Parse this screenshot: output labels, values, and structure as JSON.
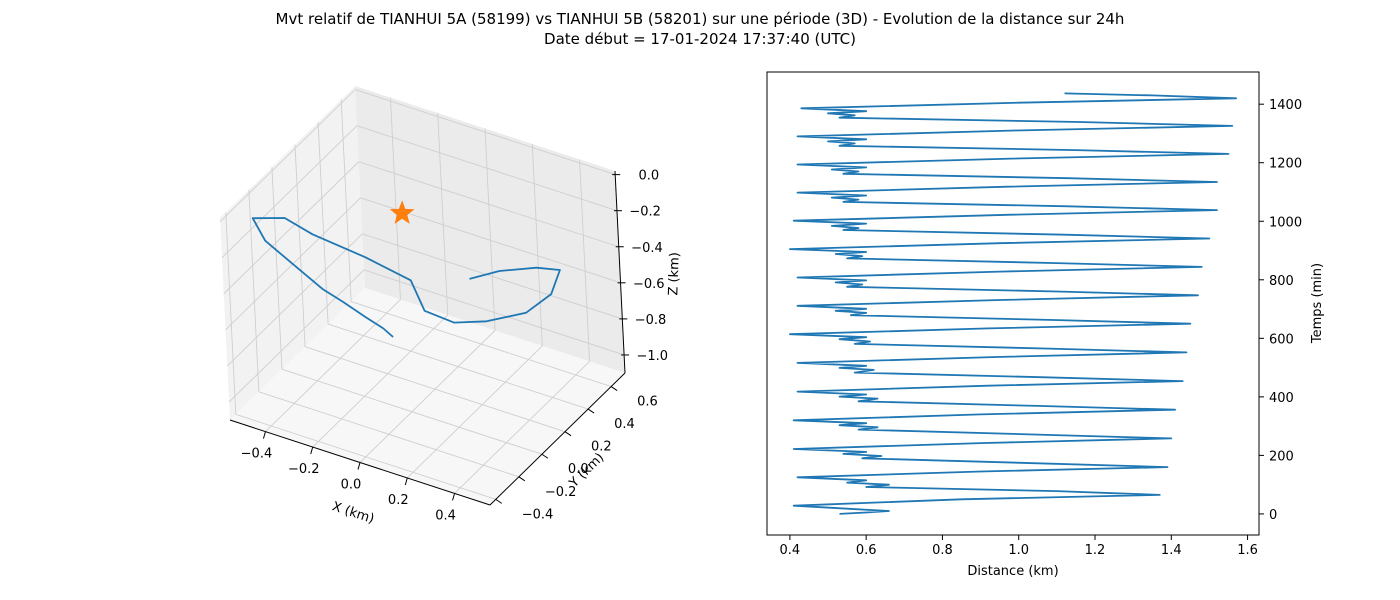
{
  "title_line1": "Mvt relatif de TIANHUI 5A (58199) vs TIANHUI 5B (58201) sur une période (3D) - Evolution de la distance sur 24h",
  "title_line2": "Date début = 17-01-2024 17:37:40 (UTC)",
  "colors": {
    "line": "#1f77b4",
    "star": "#ff7f0e",
    "pane_left": "#f2f2f2",
    "pane_right": "#ebebeb",
    "pane_floor": "#f7f7f7",
    "grid": "#d8d8d8"
  },
  "chart_data": [
    {
      "type": "line3d",
      "xlabel": "X (km)",
      "ylabel": "Y (km)",
      "zlabel": "Z (km)",
      "xlim": [
        -0.55,
        0.55
      ],
      "ylim": [
        -0.45,
        0.72
      ],
      "zlim": [
        -1.1,
        0.02
      ],
      "x_ticks": [
        -0.4,
        -0.2,
        0.0,
        0.2,
        0.4
      ],
      "y_ticks": [
        -0.4,
        -0.2,
        0.0,
        0.2,
        0.4,
        0.6
      ],
      "z_ticks": [
        0.0,
        -0.2,
        -0.4,
        -0.6,
        -0.8,
        -1.0
      ],
      "x_tick_labels": [
        "−0.4",
        "−0.2",
        "0.0",
        "0.2",
        "0.4"
      ],
      "y_tick_labels": [
        "−0.4",
        "−0.2",
        "0.0",
        "0.2",
        "0.4",
        "0.6"
      ],
      "z_tick_labels": [
        "0.0",
        "−0.2",
        "−0.4",
        "−0.6",
        "−0.8",
        "−1.0"
      ],
      "star_point": {
        "x": 0,
        "y": 0,
        "z": 0
      },
      "series": [
        {
          "points": [
            [
              0.06,
              -0.24,
              -0.51
            ],
            [
              0.02,
              -0.24,
              -0.48
            ],
            [
              -0.05,
              -0.25,
              -0.44
            ],
            [
              -0.13,
              -0.27,
              -0.38
            ],
            [
              -0.2,
              -0.3,
              -0.32
            ],
            [
              -0.3,
              -0.3,
              -0.25
            ],
            [
              -0.48,
              -0.22,
              -0.22
            ],
            [
              -0.55,
              -0.18,
              -0.15
            ],
            [
              -0.48,
              -0.05,
              -0.2
            ],
            [
              -0.4,
              0.02,
              -0.3
            ],
            [
              -0.22,
              0.1,
              -0.4
            ],
            [
              -0.05,
              0.14,
              -0.48
            ],
            [
              0.05,
              0.05,
              -0.55
            ],
            [
              0.2,
              0.0,
              -0.52
            ],
            [
              0.33,
              0.02,
              -0.47
            ],
            [
              0.47,
              0.08,
              -0.4
            ],
            [
              0.52,
              0.2,
              -0.35
            ],
            [
              0.5,
              0.32,
              -0.3
            ],
            [
              0.4,
              0.32,
              -0.33
            ],
            [
              0.25,
              0.3,
              -0.4
            ],
            [
              0.12,
              0.3,
              -0.5
            ]
          ]
        }
      ]
    },
    {
      "type": "line",
      "xlabel": "Distance (km)",
      "ylabel": "Temps (min)",
      "xlim": [
        0.34,
        1.63
      ],
      "ylim": [
        -72,
        1510
      ],
      "x_ticks": [
        0.4,
        0.6,
        0.8,
        1.0,
        1.2,
        1.4,
        1.6
      ],
      "y_ticks": [
        0,
        200,
        400,
        600,
        800,
        1000,
        1200,
        1400
      ],
      "x_tick_labels": [
        "0.4",
        "0.6",
        "0.8",
        "1.0",
        "1.2",
        "1.4",
        "1.6"
      ],
      "y_tick_labels": [
        "0",
        "200",
        "400",
        "600",
        "800",
        "1000",
        "1200",
        "1400"
      ],
      "series": [
        {
          "points": [
            [
              0.53,
              0
            ],
            [
              0.6,
              5
            ],
            [
              0.66,
              10
            ],
            [
              0.55,
              18
            ],
            [
              0.41,
              28
            ],
            [
              0.85,
              50
            ],
            [
              1.37,
              65
            ],
            [
              1.1,
              78
            ],
            [
              0.6,
              92
            ],
            [
              0.66,
              100
            ],
            [
              0.55,
              107
            ],
            [
              0.6,
              115
            ],
            [
              0.42,
              125
            ],
            [
              0.9,
              145
            ],
            [
              1.39,
              160
            ],
            [
              1.05,
              173
            ],
            [
              0.59,
              190
            ],
            [
              0.64,
              198
            ],
            [
              0.54,
              205
            ],
            [
              0.6,
              212
            ],
            [
              0.41,
              222
            ],
            [
              0.9,
              242
            ],
            [
              1.4,
              258
            ],
            [
              1.05,
              271
            ],
            [
              0.58,
              288
            ],
            [
              0.63,
              296
            ],
            [
              0.53,
              303
            ],
            [
              0.6,
              310
            ],
            [
              0.41,
              320
            ],
            [
              0.9,
              340
            ],
            [
              1.41,
              356
            ],
            [
              1.05,
              369
            ],
            [
              0.58,
              385
            ],
            [
              0.63,
              394
            ],
            [
              0.53,
              401
            ],
            [
              0.6,
              408
            ],
            [
              0.42,
              418
            ],
            [
              0.92,
              438
            ],
            [
              1.43,
              454
            ],
            [
              1.07,
              467
            ],
            [
              0.57,
              483
            ],
            [
              0.62,
              492
            ],
            [
              0.53,
              499
            ],
            [
              0.6,
              506
            ],
            [
              0.42,
              516
            ],
            [
              0.93,
              536
            ],
            [
              1.44,
              552
            ],
            [
              1.08,
              565
            ],
            [
              0.57,
              581
            ],
            [
              0.61,
              589
            ],
            [
              0.53,
              597
            ],
            [
              0.6,
              604
            ],
            [
              0.4,
              614
            ],
            [
              0.92,
              634
            ],
            [
              1.45,
              650
            ],
            [
              1.08,
              663
            ],
            [
              0.56,
              679
            ],
            [
              0.6,
              687
            ],
            [
              0.52,
              694
            ],
            [
              0.6,
              701
            ],
            [
              0.42,
              711
            ],
            [
              0.95,
              731
            ],
            [
              1.47,
              747
            ],
            [
              1.1,
              760
            ],
            [
              0.55,
              776
            ],
            [
              0.59,
              784
            ],
            [
              0.52,
              791
            ],
            [
              0.6,
              798
            ],
            [
              0.42,
              808
            ],
            [
              0.95,
              828
            ],
            [
              1.48,
              844
            ],
            [
              1.1,
              857
            ],
            [
              0.55,
              873
            ],
            [
              0.59,
              881
            ],
            [
              0.52,
              888
            ],
            [
              0.6,
              895
            ],
            [
              0.4,
              905
            ],
            [
              0.95,
              925
            ],
            [
              1.5,
              941
            ],
            [
              1.12,
              954
            ],
            [
              0.54,
              970
            ],
            [
              0.58,
              977
            ],
            [
              0.51,
              984
            ],
            [
              0.6,
              992
            ],
            [
              0.41,
              1002
            ],
            [
              0.97,
              1022
            ],
            [
              1.52,
              1038
            ],
            [
              1.13,
              1051
            ],
            [
              0.54,
              1066
            ],
            [
              0.58,
              1074
            ],
            [
              0.51,
              1081
            ],
            [
              0.6,
              1088
            ],
            [
              0.42,
              1098
            ],
            [
              0.97,
              1118
            ],
            [
              1.52,
              1134
            ],
            [
              1.13,
              1147
            ],
            [
              0.54,
              1162
            ],
            [
              0.58,
              1170
            ],
            [
              0.51,
              1177
            ],
            [
              0.6,
              1184
            ],
            [
              0.42,
              1194
            ],
            [
              0.98,
              1214
            ],
            [
              1.55,
              1230
            ],
            [
              1.15,
              1243
            ],
            [
              0.53,
              1258
            ],
            [
              0.57,
              1266
            ],
            [
              0.5,
              1273
            ],
            [
              0.6,
              1280
            ],
            [
              0.42,
              1290
            ],
            [
              0.99,
              1310
            ],
            [
              1.56,
              1326
            ],
            [
              1.16,
              1339
            ],
            [
              0.53,
              1354
            ],
            [
              0.57,
              1362
            ],
            [
              0.5,
              1369
            ],
            [
              0.6,
              1376
            ],
            [
              0.43,
              1386
            ],
            [
              1.0,
              1405
            ],
            [
              1.57,
              1420
            ],
            [
              1.35,
              1430
            ],
            [
              1.12,
              1437
            ]
          ]
        }
      ]
    }
  ]
}
